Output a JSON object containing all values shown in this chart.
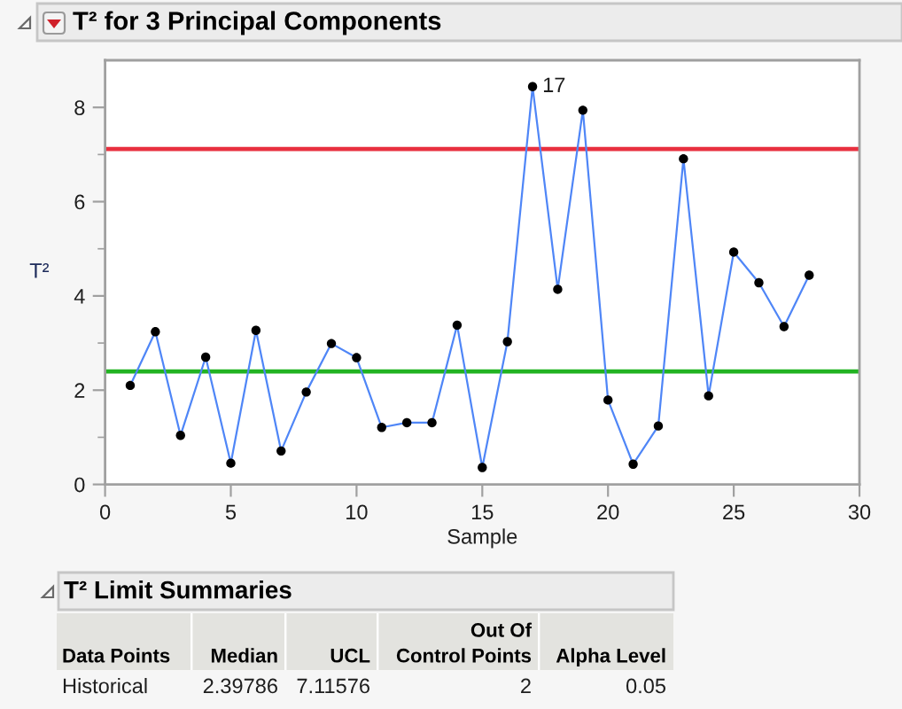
{
  "chart_data": [
    {
      "type": "line",
      "title": "T² for 3 Principal Components",
      "xlabel": "Sample",
      "ylabel": "T²",
      "x": [
        1,
        2,
        3,
        4,
        5,
        6,
        7,
        8,
        9,
        10,
        11,
        12,
        13,
        14,
        15,
        16,
        17,
        18,
        19,
        20,
        21,
        22,
        23,
        24,
        25,
        26,
        27,
        28
      ],
      "series": [
        {
          "color": "#4f86f7",
          "values": [
            2.1,
            3.24,
            1.04,
            2.7,
            0.45,
            3.27,
            0.71,
            1.96,
            2.99,
            2.69,
            1.21,
            1.31,
            1.31,
            3.38,
            0.36,
            3.03,
            8.44,
            4.14,
            7.94,
            1.79,
            0.43,
            1.24,
            6.91,
            1.88,
            4.93,
            4.28,
            3.35,
            4.44
          ]
        }
      ],
      "marker": "circle",
      "line_style": "solid",
      "xlim": [
        0,
        30
      ],
      "xticks": [
        0,
        5,
        10,
        15,
        20,
        25,
        30
      ],
      "ylim": [
        0,
        9
      ],
      "yticks": [
        0,
        {
          "value": 1,
          "label": null
        },
        2,
        {
          "value": 3,
          "label": null
        },
        4,
        {
          "value": 5,
          "label": null
        },
        6,
        {
          "value": 7,
          "label": null
        },
        8
      ],
      "ref_lines": [
        {
          "axis": "y",
          "value": 7.11576,
          "color": "#e8303f"
        },
        {
          "axis": "y",
          "value": 2.39786,
          "color": "#22b322"
        }
      ],
      "annotations": [
        {
          "text": "17",
          "x": 17,
          "y": 8.44
        }
      ],
      "grid": false
    },
    {
      "type": "other",
      "title": "T² Limit Summaries",
      "categories": [
        "Data Points",
        "Median",
        "UCL",
        "Out Of\nControl Points",
        "Alpha Level"
      ],
      "annotations": [
        "Historical",
        "2.39786",
        "7.11576",
        "2",
        "0.05"
      ]
    }
  ]
}
